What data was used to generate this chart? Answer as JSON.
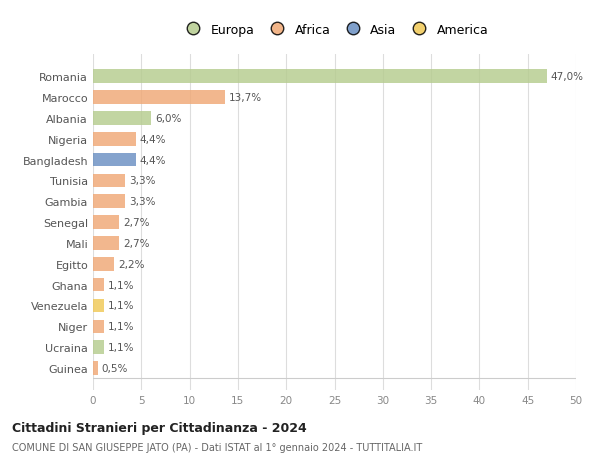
{
  "countries": [
    "Romania",
    "Marocco",
    "Albania",
    "Nigeria",
    "Bangladesh",
    "Tunisia",
    "Gambia",
    "Senegal",
    "Mali",
    "Egitto",
    "Ghana",
    "Venezuela",
    "Niger",
    "Ucraina",
    "Guinea"
  ],
  "values": [
    47.0,
    13.7,
    6.0,
    4.4,
    4.4,
    3.3,
    3.3,
    2.7,
    2.7,
    2.2,
    1.1,
    1.1,
    1.1,
    1.1,
    0.5
  ],
  "labels": [
    "47,0%",
    "13,7%",
    "6,0%",
    "4,4%",
    "4,4%",
    "3,3%",
    "3,3%",
    "2,7%",
    "2,7%",
    "2,2%",
    "1,1%",
    "1,1%",
    "1,1%",
    "1,1%",
    "0,5%"
  ],
  "colors": [
    "#b5cc8e",
    "#f0a875",
    "#b5cc8e",
    "#f0a875",
    "#6a8fc2",
    "#f0a875",
    "#f0a875",
    "#f0a875",
    "#f0a875",
    "#f0a875",
    "#f0a875",
    "#f0c855",
    "#f0a875",
    "#b5cc8e",
    "#f0a875"
  ],
  "legend_labels": [
    "Europa",
    "Africa",
    "Asia",
    "America"
  ],
  "legend_colors": [
    "#b5cc8e",
    "#f0a875",
    "#6a8fc2",
    "#f0c855"
  ],
  "xlim": [
    0,
    50
  ],
  "xticks": [
    0,
    5,
    10,
    15,
    20,
    25,
    30,
    35,
    40,
    45,
    50
  ],
  "title": "Cittadini Stranieri per Cittadinanza - 2024",
  "subtitle": "COMUNE DI SAN GIUSEPPE JATO (PA) - Dati ISTAT al 1° gennaio 2024 - TUTTITALIA.IT",
  "bg_color": "#ffffff",
  "grid_color": "#dddddd",
  "bar_height": 0.65,
  "label_fontsize": 7.5,
  "tick_fontsize": 7.5,
  "ytick_fontsize": 8.0
}
